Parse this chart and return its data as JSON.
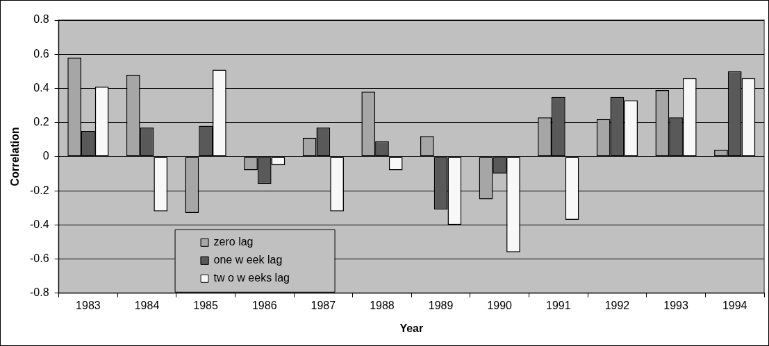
{
  "chart_data": {
    "type": "bar",
    "xlabel": "Year",
    "ylabel": "Correlation",
    "categories": [
      "1983",
      "1984",
      "1985",
      "1986",
      "1987",
      "1988",
      "1989",
      "1990",
      "1991",
      "1992",
      "1993",
      "1994"
    ],
    "series": [
      {
        "name": "zero lag",
        "color": "#a6a6a6",
        "values": [
          0.58,
          0.48,
          -0.33,
          -0.08,
          0.11,
          0.38,
          0.12,
          -0.25,
          0.23,
          0.22,
          0.39,
          0.04
        ]
      },
      {
        "name": "one w eek lag",
        "color": "#595959",
        "values": [
          0.15,
          0.17,
          0.18,
          -0.16,
          0.17,
          0.09,
          -0.31,
          -0.1,
          0.35,
          0.35,
          0.23,
          0.5
        ]
      },
      {
        "name": "tw o w eeks lag",
        "color": "#f8f8f8",
        "values": [
          0.41,
          -0.32,
          0.51,
          -0.05,
          -0.32,
          -0.08,
          -0.4,
          -0.56,
          -0.37,
          0.33,
          0.46,
          0.46
        ]
      }
    ],
    "ylim": [
      -0.8,
      0.8
    ],
    "yticks": [
      -0.8,
      -0.6,
      -0.4,
      -0.2,
      0,
      0.2,
      0.4,
      0.6,
      0.8
    ],
    "grid": "y",
    "legend": "bottom left"
  }
}
